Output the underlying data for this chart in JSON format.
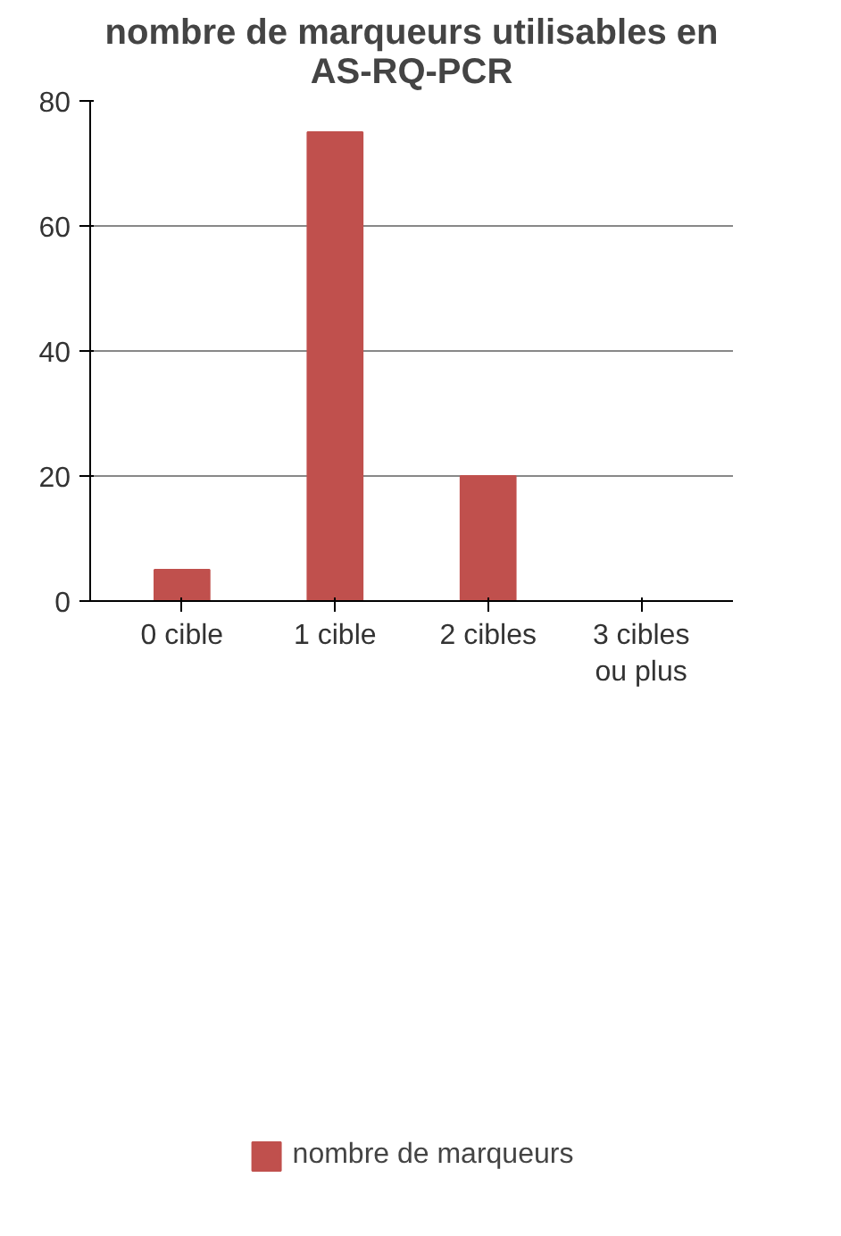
{
  "chart_data": {
    "type": "bar",
    "title": "nombre de marqueurs utilisables en AS-RQ-PCR",
    "categories": [
      "0 cible",
      "1 cible",
      "2 cibles",
      "3 cibles ou plus"
    ],
    "series": [
      {
        "name": "nombre de marqueurs",
        "color": "#c0504d",
        "values": [
          5,
          75,
          20,
          0
        ]
      }
    ],
    "ylim": [
      0,
      80
    ],
    "yticks": [
      0,
      20,
      40,
      60,
      80
    ],
    "grid": "y",
    "legend": "bottom"
  }
}
